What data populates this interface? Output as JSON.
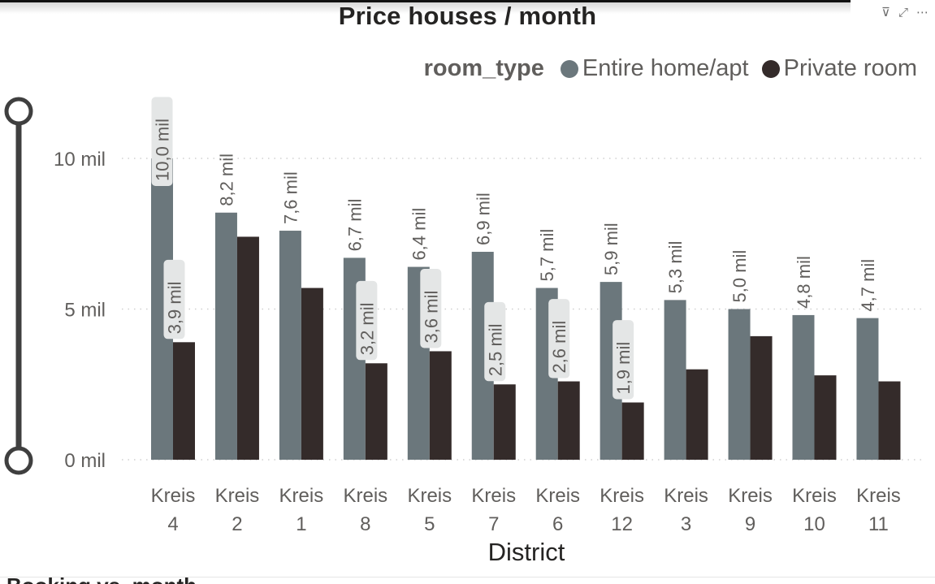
{
  "visual_header": {
    "filter_icon_glyph": "⊽",
    "focus_icon_glyph": "⤢",
    "more_icon_glyph": "⋯"
  },
  "next_visual_title": "Booking vs. month",
  "chart_data": {
    "type": "bar",
    "title": "Price houses / month",
    "xlabel": "District",
    "ylabel": "",
    "legend_title": "room_type",
    "legend_position": "top-right",
    "ylim": [
      0,
      11.5
    ],
    "yticks": [
      0,
      5,
      10
    ],
    "ytick_labels": [
      "0 mil",
      "5 mil",
      "10 mil"
    ],
    "grid": true,
    "categories": [
      "Kreis 4",
      "Kreis 2",
      "Kreis 1",
      "Kreis 8",
      "Kreis 5",
      "Kreis 7",
      "Kreis 6",
      "Kreis 12",
      "Kreis 3",
      "Kreis 9",
      "Kreis 10",
      "Kreis 11"
    ],
    "category_lines": [
      [
        "Kreis",
        "4"
      ],
      [
        "Kreis",
        "2"
      ],
      [
        "Kreis",
        "1"
      ],
      [
        "Kreis",
        "8"
      ],
      [
        "Kreis",
        "5"
      ],
      [
        "Kreis",
        "7"
      ],
      [
        "Kreis",
        "6"
      ],
      [
        "Kreis",
        "12"
      ],
      [
        "Kreis",
        "3"
      ],
      [
        "Kreis",
        "9"
      ],
      [
        "Kreis",
        "10"
      ],
      [
        "Kreis",
        "11"
      ]
    ],
    "series": [
      {
        "name": "Entire home/apt",
        "color": "#6b777c",
        "values": [
          10.0,
          8.2,
          7.6,
          6.7,
          6.4,
          6.9,
          5.7,
          5.9,
          5.3,
          5.0,
          4.8,
          4.7
        ],
        "labels": [
          "10,0 mil",
          "8,2 mil",
          "7,6 mil",
          "6,7 mil",
          "6,4 mil",
          "6,9 mil",
          "5,7 mil",
          "5,9 mil",
          "5,3 mil",
          "5,0 mil",
          "4,8 mil",
          "4,7 mil"
        ]
      },
      {
        "name": "Private room",
        "color": "#342b2a",
        "values": [
          3.9,
          7.4,
          5.7,
          3.2,
          3.6,
          2.5,
          2.6,
          1.9,
          3.0,
          4.1,
          2.8,
          2.6
        ],
        "labels": [
          "3,9 mil",
          "",
          "",
          "3,2 mil",
          "3,6 mil",
          "2,5 mil",
          "2,6 mil",
          "1,9 mil",
          "",
          "",
          "",
          ""
        ]
      }
    ],
    "colors": {
      "label_text": "#605e5c",
      "label_background": "#e4e6e6",
      "axis_text": "#605e5c",
      "gridline": "#d0d0d0",
      "slider": "#3f3f3f"
    }
  }
}
